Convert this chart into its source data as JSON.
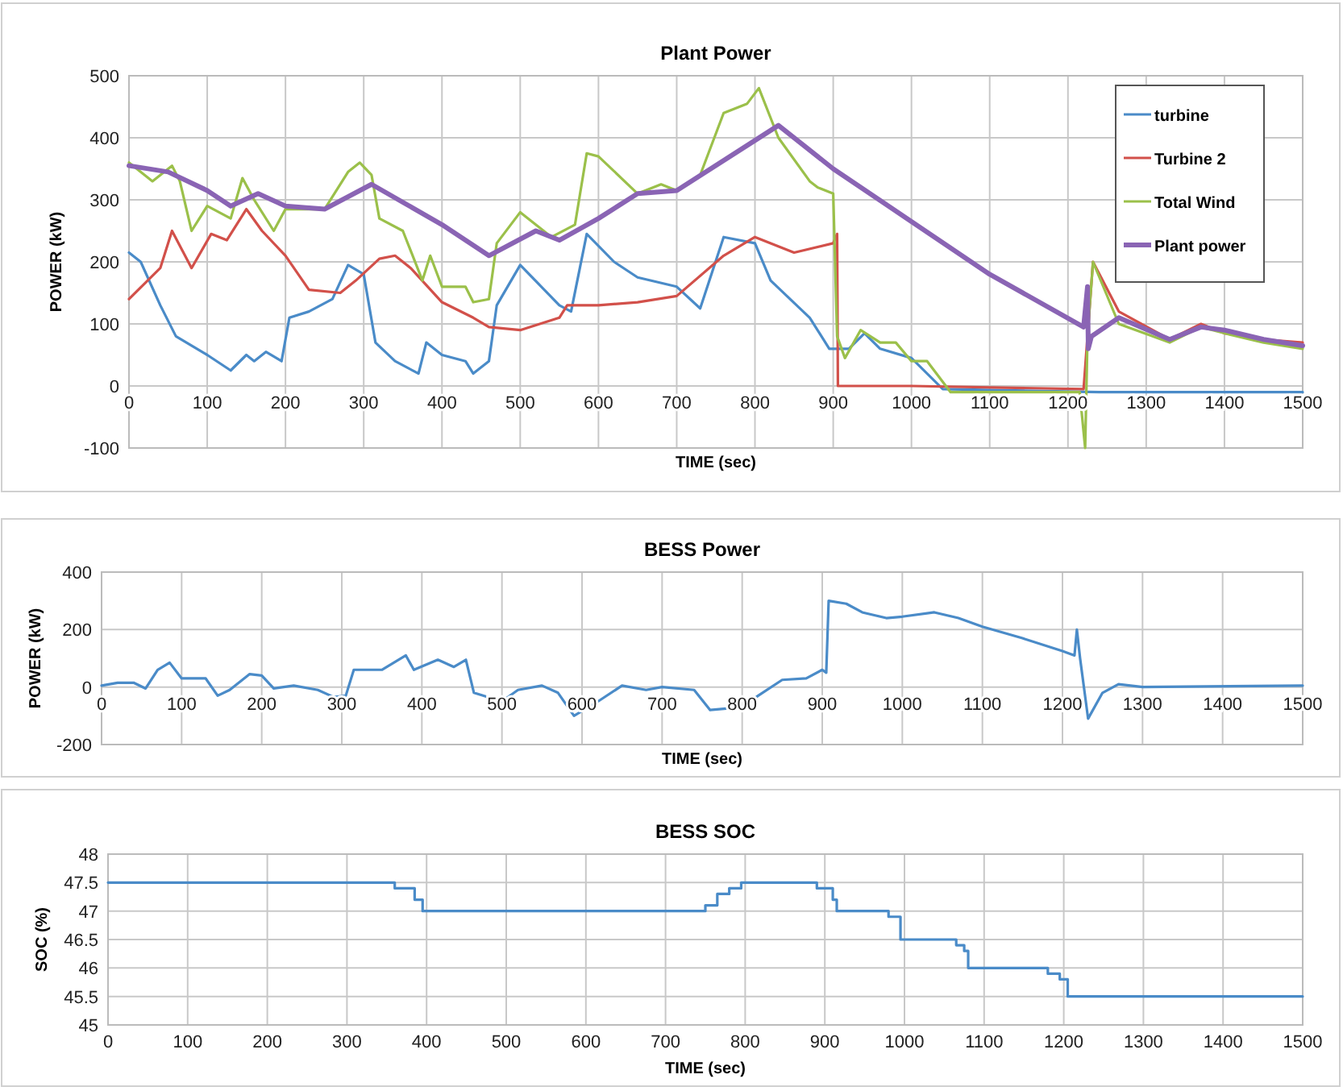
{
  "chart_data": [
    {
      "type": "line",
      "title": "Plant Power",
      "xlabel": "TIME (sec)",
      "ylabel": "POWER (kW)",
      "xlim": [
        0,
        1500
      ],
      "xticks": [
        0,
        100,
        200,
        300,
        400,
        500,
        600,
        700,
        800,
        900,
        1000,
        1100,
        1200,
        1300,
        1400,
        1500
      ],
      "ylim": [
        -100,
        500
      ],
      "yticks": [
        -100,
        0,
        100,
        200,
        300,
        400,
        500
      ],
      "grid": true,
      "legend": "top right",
      "marker": "none",
      "line_style": "solid",
      "series": [
        {
          "name": "turbine",
          "color": "#4a8bc8",
          "x": [
            0,
            15,
            40,
            60,
            100,
            130,
            150,
            160,
            175,
            195,
            205,
            230,
            260,
            280,
            300,
            315,
            340,
            370,
            380,
            400,
            430,
            440,
            460,
            470,
            500,
            550,
            565,
            585,
            620,
            650,
            700,
            730,
            760,
            800,
            820,
            870,
            895,
            920,
            940,
            960,
            1000,
            1040,
            1240,
            1500
          ],
          "values": [
            215,
            200,
            130,
            80,
            50,
            25,
            50,
            40,
            55,
            40,
            110,
            120,
            140,
            195,
            180,
            70,
            40,
            20,
            70,
            50,
            40,
            20,
            40,
            130,
            195,
            130,
            120,
            245,
            200,
            175,
            160,
            125,
            240,
            230,
            170,
            110,
            60,
            60,
            85,
            60,
            45,
            -5,
            -10,
            -10
          ]
        },
        {
          "name": "Turbine 2",
          "color": "#d2504a",
          "x": [
            0,
            40,
            55,
            80,
            105,
            125,
            150,
            170,
            200,
            230,
            270,
            290,
            320,
            340,
            360,
            400,
            440,
            460,
            500,
            550,
            560,
            600,
            650,
            700,
            760,
            800,
            850,
            900,
            905,
            906,
            1000,
            1220,
            1232,
            1265,
            1330,
            1370,
            1400,
            1450,
            1500
          ],
          "values": [
            140,
            190,
            250,
            190,
            245,
            235,
            285,
            250,
            210,
            155,
            150,
            170,
            205,
            210,
            190,
            135,
            110,
            95,
            90,
            110,
            130,
            130,
            135,
            145,
            210,
            240,
            215,
            230,
            245,
            0,
            0,
            -5,
            200,
            120,
            75,
            100,
            85,
            75,
            70
          ]
        },
        {
          "name": "Total Wind",
          "color": "#9bc04a",
          "x": [
            0,
            30,
            55,
            65,
            80,
            100,
            130,
            145,
            160,
            185,
            200,
            250,
            280,
            295,
            310,
            320,
            350,
            375,
            385,
            400,
            430,
            440,
            460,
            470,
            500,
            540,
            570,
            585,
            600,
            650,
            680,
            700,
            730,
            760,
            790,
            805,
            830,
            870,
            880,
            900,
            905,
            915,
            935,
            960,
            980,
            1000,
            1020,
            1050,
            1100,
            1215,
            1222,
            1225,
            1232,
            1265,
            1330,
            1370,
            1400,
            1450,
            1500
          ],
          "values": [
            360,
            330,
            355,
            330,
            250,
            290,
            270,
            335,
            300,
            250,
            285,
            285,
            345,
            360,
            340,
            270,
            250,
            170,
            210,
            160,
            160,
            135,
            140,
            230,
            280,
            240,
            260,
            375,
            370,
            310,
            325,
            315,
            340,
            440,
            455,
            480,
            400,
            330,
            320,
            310,
            80,
            45,
            90,
            70,
            70,
            40,
            40,
            -10,
            -10,
            -10,
            -100,
            80,
            200,
            100,
            70,
            95,
            85,
            70,
            60
          ]
        },
        {
          "name": "Plant power",
          "color": "#8a64b4",
          "x": [
            0,
            50,
            100,
            130,
            165,
            200,
            250,
            310,
            400,
            460,
            520,
            550,
            600,
            650,
            700,
            830,
            900,
            1000,
            1100,
            1220,
            1225,
            1226,
            1230,
            1265,
            1330,
            1370,
            1400,
            1450,
            1500
          ],
          "values": [
            355,
            345,
            315,
            290,
            310,
            290,
            285,
            325,
            260,
            210,
            250,
            235,
            270,
            310,
            315,
            420,
            350,
            265,
            180,
            95,
            160,
            60,
            80,
            110,
            75,
            95,
            90,
            75,
            65
          ]
        }
      ]
    },
    {
      "type": "line",
      "title": "BESS Power",
      "xlabel": "TIME (sec)",
      "ylabel": "POWER (kW)",
      "xlim": [
        0,
        1500
      ],
      "xticks": [
        0,
        100,
        200,
        300,
        400,
        500,
        600,
        700,
        800,
        900,
        1000,
        1100,
        1200,
        1300,
        1400,
        1500
      ],
      "ylim": [
        -200,
        400
      ],
      "yticks": [
        -200,
        0,
        200,
        400
      ],
      "grid": true,
      "marker": "none",
      "line_style": "solid",
      "series": [
        {
          "color": "#4a8bc8",
          "x": [
            0,
            20,
            40,
            55,
            70,
            85,
            100,
            130,
            145,
            160,
            185,
            200,
            215,
            240,
            270,
            290,
            305,
            315,
            350,
            380,
            390,
            420,
            440,
            455,
            465,
            500,
            520,
            550,
            570,
            590,
            620,
            650,
            680,
            700,
            740,
            760,
            800,
            820,
            850,
            880,
            900,
            905,
            908,
            930,
            950,
            980,
            1000,
            1040,
            1070,
            1100,
            1150,
            1200,
            1215,
            1218,
            1222,
            1232,
            1250,
            1270,
            1300,
            1500
          ],
          "values": [
            5,
            15,
            15,
            -5,
            60,
            85,
            30,
            30,
            -30,
            -10,
            45,
            40,
            -5,
            5,
            -10,
            -35,
            -30,
            60,
            60,
            110,
            60,
            95,
            70,
            95,
            -20,
            -50,
            -10,
            5,
            -20,
            -100,
            -50,
            5,
            -10,
            0,
            -10,
            -80,
            -70,
            -30,
            25,
            30,
            60,
            50,
            300,
            290,
            260,
            240,
            245,
            260,
            240,
            210,
            170,
            125,
            110,
            200,
            100,
            -110,
            -20,
            10,
            0,
            5
          ]
        }
      ]
    },
    {
      "type": "step",
      "title": "BESS SOC",
      "xlabel": "TIME (sec)",
      "ylabel": "SOC (%)",
      "xlim": [
        0,
        1500
      ],
      "xticks": [
        0,
        100,
        200,
        300,
        400,
        500,
        600,
        700,
        800,
        900,
        1000,
        1100,
        1200,
        1300,
        1400,
        1500
      ],
      "ylim": [
        45,
        48
      ],
      "yticks": [
        45,
        45.5,
        46,
        46.5,
        47,
        47.5,
        48
      ],
      "grid": true,
      "marker": "none",
      "line_style": "solid",
      "series": [
        {
          "color": "#4a8bc8",
          "x": [
            0,
            360,
            385,
            395,
            750,
            765,
            780,
            795,
            890,
            910,
            915,
            980,
            995,
            1065,
            1075,
            1080,
            1180,
            1195,
            1205,
            1500
          ],
          "values": [
            47.5,
            47.4,
            47.2,
            47.0,
            47.1,
            47.3,
            47.4,
            47.5,
            47.4,
            47.2,
            47.0,
            46.9,
            46.5,
            46.4,
            46.3,
            46.0,
            45.9,
            45.8,
            45.5,
            45.5
          ]
        }
      ]
    }
  ]
}
